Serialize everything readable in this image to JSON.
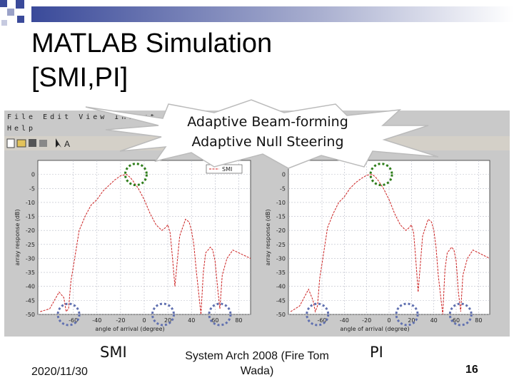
{
  "slide": {
    "title_line1": "MATLAB Simulation",
    "title_line2": "[SMI,PI]",
    "callout_line1": "Adaptive Beam-forming",
    "callout_line2": "Adaptive Null Steering",
    "caption_left": "SMI",
    "caption_right": "PI",
    "footer_date": "2020/11/30",
    "footer_center": "System Arch 2008 (Fire Tom Wada)",
    "slide_number": "16"
  },
  "colors": {
    "accent_blue": "#3a4a9a",
    "grid_gray": "#b9bcc8",
    "plot_red": "#cc2222",
    "marker_green": "#2e7d1a",
    "marker_blue": "#6070b0"
  },
  "matlab": {
    "menu_row1": "File Edit View Insert Tools Window",
    "menu_row2": "Help",
    "legend_label": "SMI"
  },
  "chart_data": [
    {
      "type": "line",
      "title": "",
      "xlabel": "angle of arrival (degree)",
      "ylabel": "array response (dB)",
      "xlim": [
        -90,
        90
      ],
      "ylim": [
        -50,
        5
      ],
      "xticks": [
        -60,
        -40,
        -20,
        0,
        20,
        40,
        60,
        80
      ],
      "yticks": [
        0,
        -5,
        -10,
        -15,
        -20,
        -25,
        -30,
        -35,
        -40,
        -45,
        -50
      ],
      "legend": [
        "SMI"
      ],
      "series": [
        {
          "name": "SMI",
          "x": [
            -88,
            -80,
            -72,
            -68,
            -66,
            -64,
            -62,
            -60,
            -55,
            -50,
            -45,
            -40,
            -35,
            -30,
            -25,
            -20,
            -15,
            -12,
            -10,
            -5,
            0,
            5,
            10,
            15,
            18,
            20,
            22,
            24,
            26,
            30,
            35,
            38,
            40,
            42,
            44,
            48,
            50,
            52,
            54,
            56,
            58,
            60,
            62,
            64,
            66,
            70,
            75,
            80,
            85,
            90
          ],
          "y": [
            -49,
            -48,
            -42,
            -44,
            -49,
            -48,
            -38,
            -33,
            -20,
            -15,
            -11,
            -9,
            -6,
            -4,
            -2,
            -0.5,
            0,
            -1,
            -2,
            -5,
            -9,
            -14,
            -18,
            -20,
            -19,
            -18,
            -21,
            -30,
            -40,
            -22,
            -16,
            -17,
            -20,
            -25,
            -34,
            -50,
            -35,
            -28,
            -27,
            -26,
            -27,
            -31,
            -40,
            -48,
            -36,
            -30,
            -27,
            -28,
            -29,
            -30
          ]
        }
      ]
    },
    {
      "type": "line",
      "title": "",
      "xlabel": "angle of arrival (degree)",
      "ylabel": "array response (dB)",
      "xlim": [
        -90,
        90
      ],
      "ylim": [
        -50,
        5
      ],
      "xticks": [
        -60,
        -40,
        -20,
        0,
        20,
        40,
        60,
        80
      ],
      "yticks": [
        0,
        -5,
        -10,
        -15,
        -20,
        -25,
        -30,
        -35,
        -40,
        -45,
        -50
      ],
      "series": [
        {
          "name": "PI",
          "x": [
            -88,
            -80,
            -72,
            -68,
            -66,
            -64,
            -62,
            -60,
            -55,
            -50,
            -45,
            -40,
            -35,
            -30,
            -25,
            -20,
            -15,
            -12,
            -10,
            -5,
            0,
            5,
            10,
            15,
            18,
            20,
            22,
            24,
            26,
            30,
            35,
            38,
            40,
            42,
            44,
            48,
            50,
            52,
            54,
            56,
            58,
            60,
            62,
            64,
            66,
            70,
            75,
            80,
            85,
            90
          ],
          "y": [
            -49,
            -47,
            -41,
            -45,
            -49,
            -47,
            -37,
            -32,
            -19,
            -14,
            -10,
            -8,
            -5,
            -3,
            -1.5,
            -0.3,
            0,
            -1,
            -2,
            -5,
            -9,
            -14,
            -18,
            -20,
            -19,
            -18,
            -21,
            -31,
            -42,
            -22,
            -16,
            -17,
            -20,
            -26,
            -36,
            -50,
            -34,
            -28,
            -27,
            -26,
            -27,
            -31,
            -42,
            -49,
            -36,
            -30,
            -27,
            -28,
            -29,
            -30
          ]
        }
      ]
    }
  ]
}
